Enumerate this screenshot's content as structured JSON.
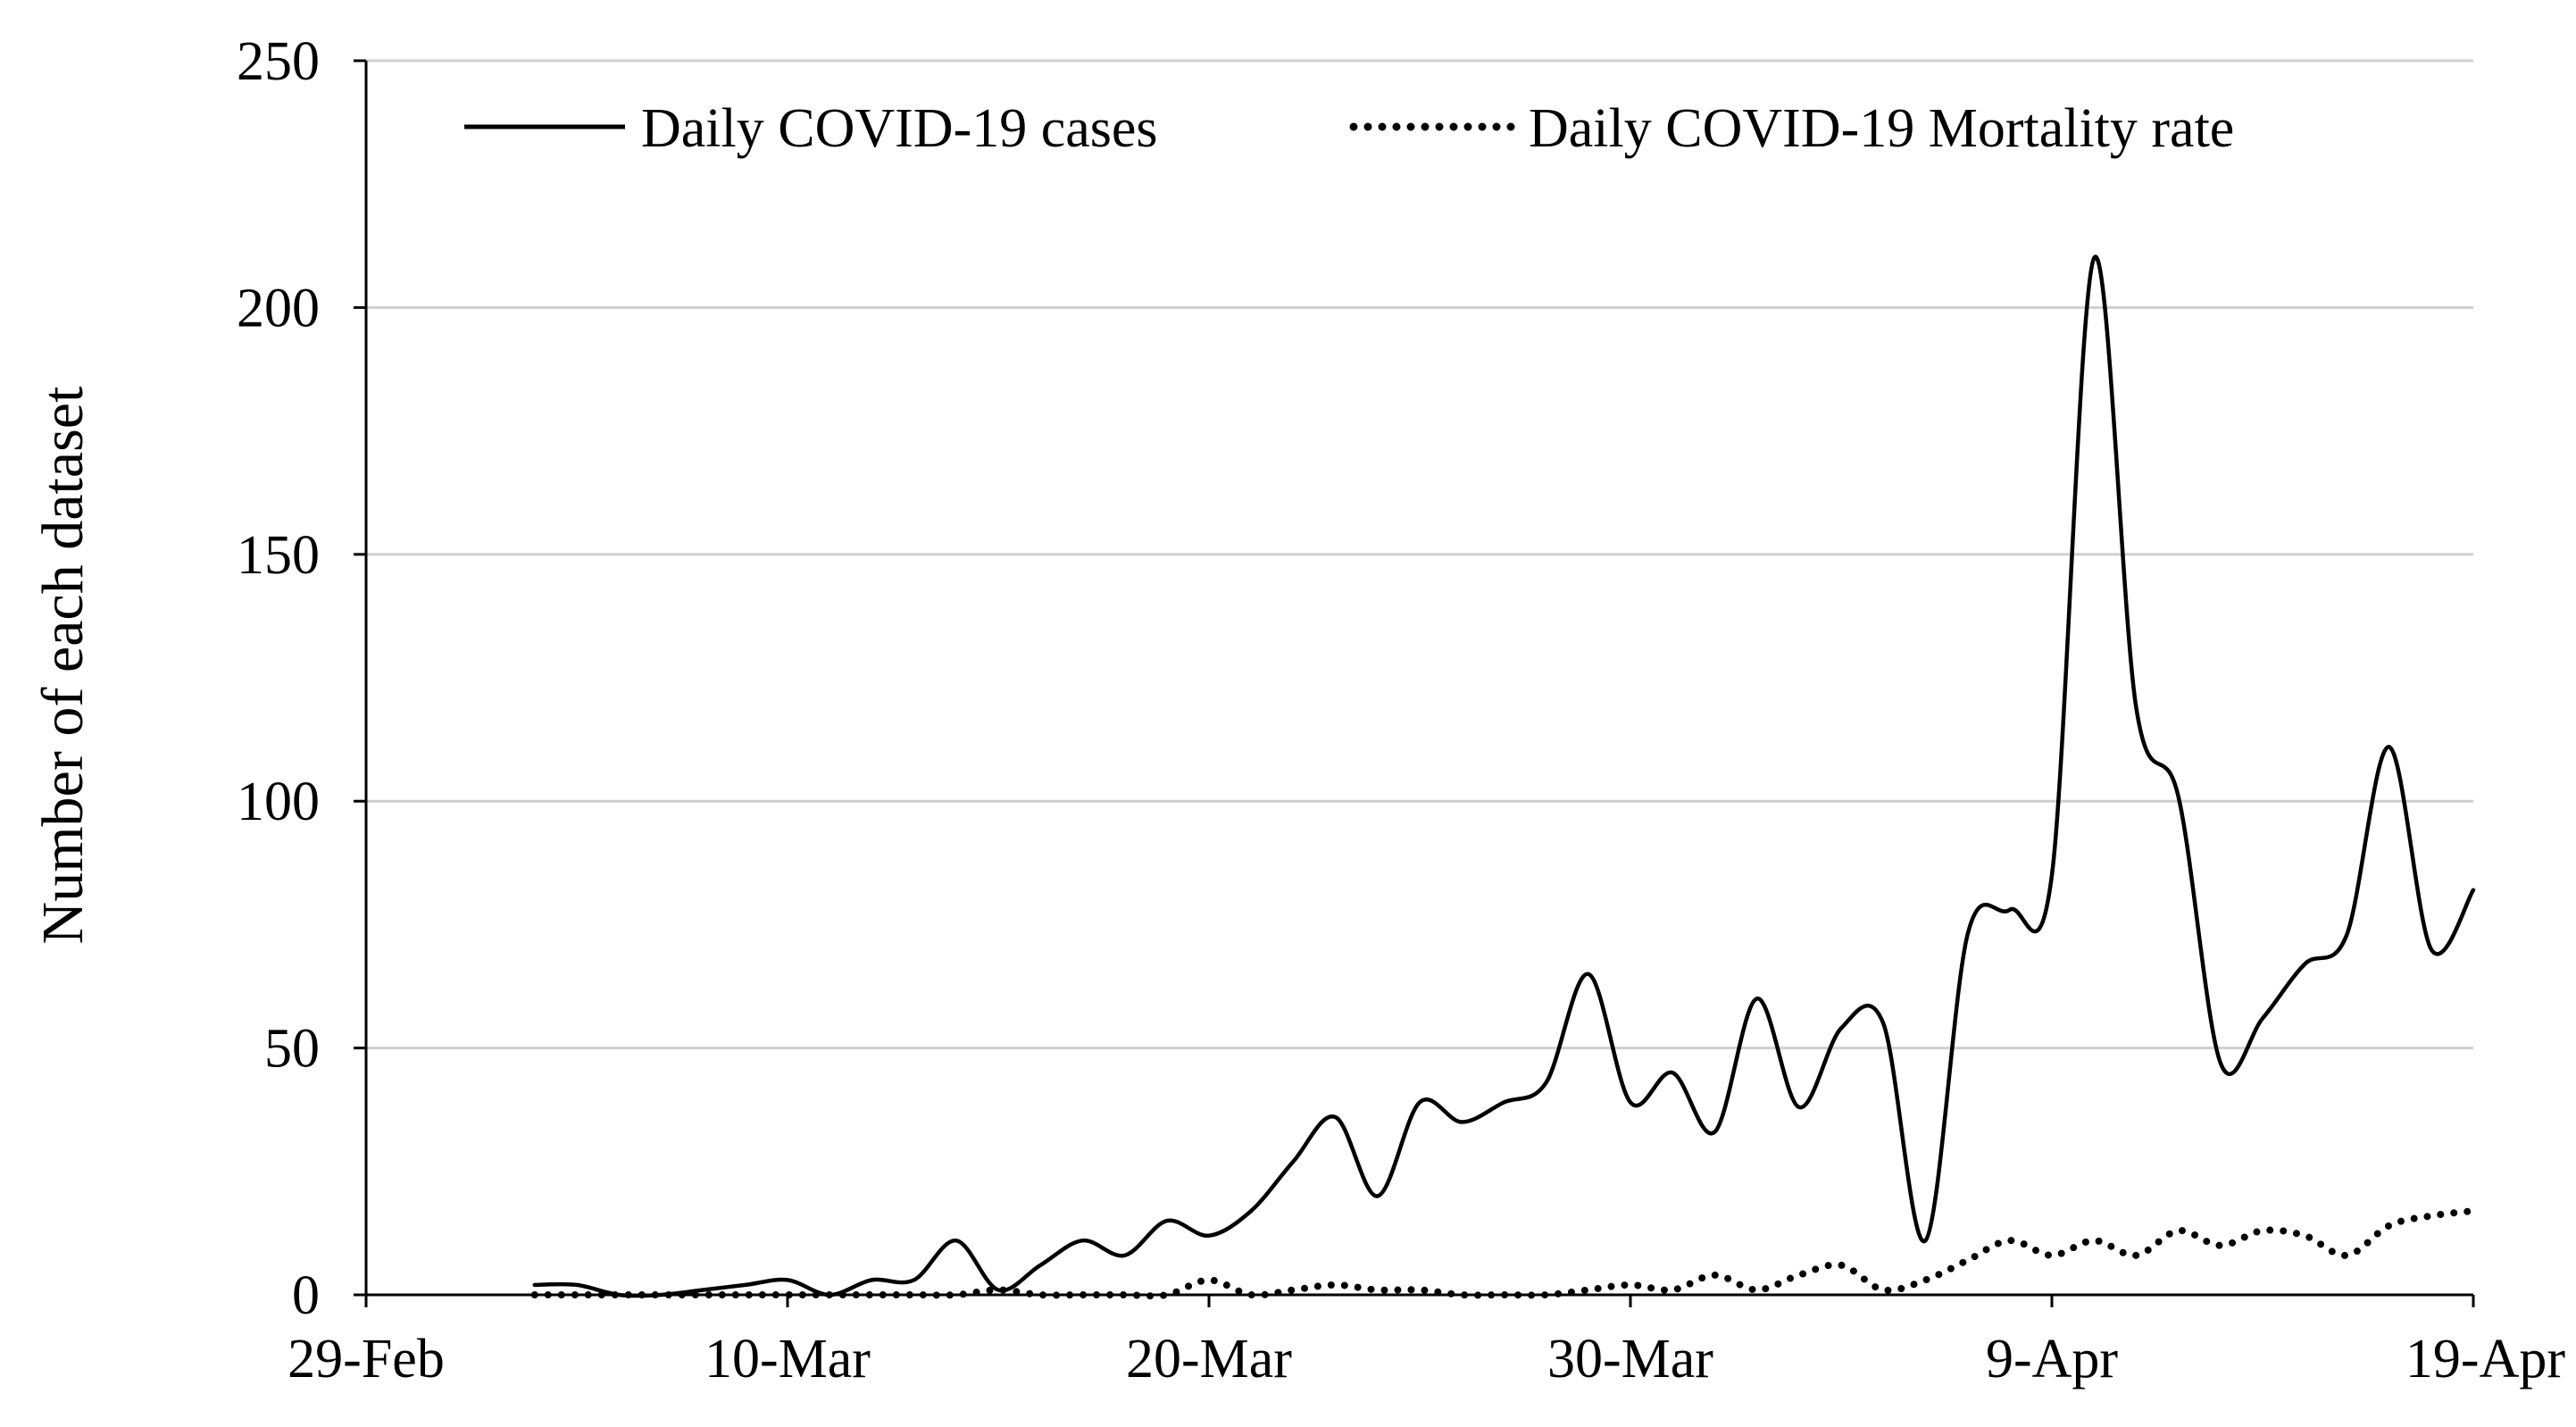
{
  "chart_data": {
    "type": "line",
    "title": "",
    "xlabel": "",
    "ylabel": "Number of each dataset",
    "x_range": [
      "2020-02-29",
      "2020-04-19"
    ],
    "ylim": [
      0,
      250
    ],
    "y_ticks": [
      0,
      50,
      100,
      150,
      200,
      250
    ],
    "x_ticks": [
      {
        "date": "2020-02-29",
        "label": "29-Feb"
      },
      {
        "date": "2020-03-10",
        "label": "10-Mar"
      },
      {
        "date": "2020-03-20",
        "label": "20-Mar"
      },
      {
        "date": "2020-03-30",
        "label": "30-Mar"
      },
      {
        "date": "2020-04-09",
        "label": "9-Apr"
      },
      {
        "date": "2020-04-19",
        "label": "19-Apr"
      }
    ],
    "grid": "horizontal",
    "legend_position": "top",
    "series": [
      {
        "name": "Daily COVID-19 cases",
        "style": "solid",
        "color": "#000000",
        "points": [
          {
            "x": "2020-03-04",
            "y": 2
          },
          {
            "x": "2020-03-05",
            "y": 2
          },
          {
            "x": "2020-03-06",
            "y": 0
          },
          {
            "x": "2020-03-07",
            "y": 0
          },
          {
            "x": "2020-03-08",
            "y": 1
          },
          {
            "x": "2020-03-09",
            "y": 2
          },
          {
            "x": "2020-03-10",
            "y": 3
          },
          {
            "x": "2020-03-11",
            "y": 0
          },
          {
            "x": "2020-03-12",
            "y": 3
          },
          {
            "x": "2020-03-13",
            "y": 3
          },
          {
            "x": "2020-03-14",
            "y": 11
          },
          {
            "x": "2020-03-15",
            "y": 1
          },
          {
            "x": "2020-03-16",
            "y": 6
          },
          {
            "x": "2020-03-17",
            "y": 11
          },
          {
            "x": "2020-03-18",
            "y": 8
          },
          {
            "x": "2020-03-19",
            "y": 15
          },
          {
            "x": "2020-03-20",
            "y": 12
          },
          {
            "x": "2020-03-21",
            "y": 17
          },
          {
            "x": "2020-03-22",
            "y": 27
          },
          {
            "x": "2020-03-23",
            "y": 36
          },
          {
            "x": "2020-03-24",
            "y": 20
          },
          {
            "x": "2020-03-25",
            "y": 39
          },
          {
            "x": "2020-03-26",
            "y": 35
          },
          {
            "x": "2020-03-27",
            "y": 39
          },
          {
            "x": "2020-03-28",
            "y": 43
          },
          {
            "x": "2020-03-29",
            "y": 65
          },
          {
            "x": "2020-03-30",
            "y": 39
          },
          {
            "x": "2020-03-31",
            "y": 45
          },
          {
            "x": "2020-04-01",
            "y": 33
          },
          {
            "x": "2020-04-02",
            "y": 60
          },
          {
            "x": "2020-04-03",
            "y": 38
          },
          {
            "x": "2020-04-04",
            "y": 54
          },
          {
            "x": "2020-04-05",
            "y": 55
          },
          {
            "x": "2020-04-06",
            "y": 11
          },
          {
            "x": "2020-04-07",
            "y": 73
          },
          {
            "x": "2020-04-08",
            "y": 78
          },
          {
            "x": "2020-04-09",
            "y": 85
          },
          {
            "x": "2020-04-10",
            "y": 210
          },
          {
            "x": "2020-04-11",
            "y": 119
          },
          {
            "x": "2020-04-12",
            "y": 101
          },
          {
            "x": "2020-04-13",
            "y": 47
          },
          {
            "x": "2020-04-14",
            "y": 56
          },
          {
            "x": "2020-04-15",
            "y": 67
          },
          {
            "x": "2020-04-16",
            "y": 73
          },
          {
            "x": "2020-04-17",
            "y": 111
          },
          {
            "x": "2020-04-18",
            "y": 70
          },
          {
            "x": "2020-04-19",
            "y": 82
          }
        ]
      },
      {
        "name": "Daily COVID-19 Mortality rate",
        "style": "dotted",
        "color": "#000000",
        "points": [
          {
            "x": "2020-03-04",
            "y": 0
          },
          {
            "x": "2020-03-05",
            "y": 0
          },
          {
            "x": "2020-03-06",
            "y": 0
          },
          {
            "x": "2020-03-07",
            "y": 0
          },
          {
            "x": "2020-03-08",
            "y": 0
          },
          {
            "x": "2020-03-09",
            "y": 0
          },
          {
            "x": "2020-03-10",
            "y": 0
          },
          {
            "x": "2020-03-11",
            "y": 0
          },
          {
            "x": "2020-03-12",
            "y": 0
          },
          {
            "x": "2020-03-13",
            "y": 0
          },
          {
            "x": "2020-03-14",
            "y": 0
          },
          {
            "x": "2020-03-15",
            "y": 1
          },
          {
            "x": "2020-03-16",
            "y": 0
          },
          {
            "x": "2020-03-17",
            "y": 0
          },
          {
            "x": "2020-03-18",
            "y": 0
          },
          {
            "x": "2020-03-19",
            "y": 0
          },
          {
            "x": "2020-03-20",
            "y": 3
          },
          {
            "x": "2020-03-21",
            "y": 0
          },
          {
            "x": "2020-03-22",
            "y": 1
          },
          {
            "x": "2020-03-23",
            "y": 2
          },
          {
            "x": "2020-03-24",
            "y": 1
          },
          {
            "x": "2020-03-25",
            "y": 1
          },
          {
            "x": "2020-03-26",
            "y": 0
          },
          {
            "x": "2020-03-27",
            "y": 0
          },
          {
            "x": "2020-03-28",
            "y": 0
          },
          {
            "x": "2020-03-29",
            "y": 1
          },
          {
            "x": "2020-03-30",
            "y": 2
          },
          {
            "x": "2020-03-31",
            "y": 1
          },
          {
            "x": "2020-04-01",
            "y": 4
          },
          {
            "x": "2020-04-02",
            "y": 1
          },
          {
            "x": "2020-04-03",
            "y": 4
          },
          {
            "x": "2020-04-04",
            "y": 6
          },
          {
            "x": "2020-04-05",
            "y": 1
          },
          {
            "x": "2020-04-06",
            "y": 3
          },
          {
            "x": "2020-04-07",
            "y": 7
          },
          {
            "x": "2020-04-08",
            "y": 11
          },
          {
            "x": "2020-04-09",
            "y": 8
          },
          {
            "x": "2020-04-10",
            "y": 11
          },
          {
            "x": "2020-04-11",
            "y": 8
          },
          {
            "x": "2020-04-12",
            "y": 13
          },
          {
            "x": "2020-04-13",
            "y": 10
          },
          {
            "x": "2020-04-14",
            "y": 13
          },
          {
            "x": "2020-04-15",
            "y": 12
          },
          {
            "x": "2020-04-16",
            "y": 8
          },
          {
            "x": "2020-04-17",
            "y": 14
          },
          {
            "x": "2020-04-18",
            "y": 16
          },
          {
            "x": "2020-04-19",
            "y": 17
          }
        ]
      }
    ]
  }
}
